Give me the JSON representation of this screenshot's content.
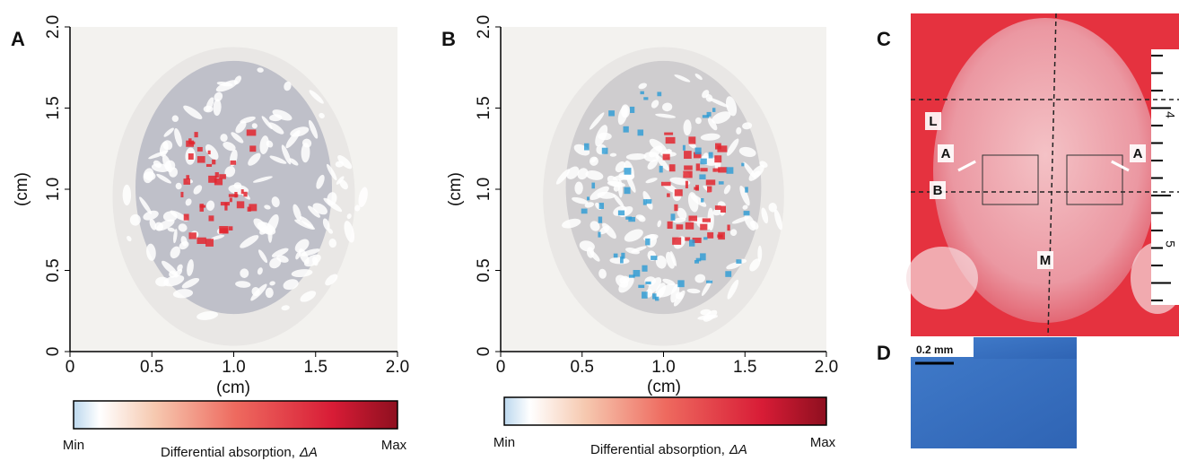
{
  "panels": [
    {
      "label": "A",
      "x_axis_label": "(cm)",
      "y_axis_label": "(cm)",
      "xlim": [
        0,
        2
      ],
      "ylim": [
        0,
        2
      ],
      "xticks": [
        0,
        0.5,
        {
          "value": 1,
          "label": "1.0"
        },
        1.5,
        {
          "value": 2,
          "label": "2.0"
        }
      ],
      "yticks": [
        0,
        0.5,
        {
          "value": 1,
          "label": "1.0"
        },
        1.5,
        {
          "value": 2,
          "label": "2.0"
        }
      ],
      "colorbar": {
        "min_label": "Min",
        "max_label": "Max",
        "label": "Differential absorption,",
        "symbol": "ΔA"
      }
    },
    {
      "label": "B",
      "x_axis_label": "(cm)",
      "y_axis_label": "(cm)",
      "xlim": [
        0,
        2
      ],
      "ylim": [
        0,
        2
      ],
      "xticks": [
        0,
        0.5,
        {
          "value": 1,
          "label": "1.0"
        },
        1.5,
        {
          "value": 2,
          "label": "2.0"
        }
      ],
      "yticks": [
        0,
        0.5,
        {
          "value": 1,
          "label": "1.0"
        },
        1.5,
        {
          "value": 2,
          "label": "2.0"
        }
      ],
      "colorbar": {
        "min_label": "Min",
        "max_label": "Max",
        "label": "Differential absorption,",
        "symbol": "ΔA"
      }
    }
  ],
  "photo_c": {
    "label": "C",
    "markers": [
      "L",
      "A",
      "A",
      "B",
      "M"
    ],
    "ruler_ticks": [
      4,
      5
    ]
  },
  "photo_d": {
    "label": "D",
    "scale_bar": "0.2 mm"
  }
}
